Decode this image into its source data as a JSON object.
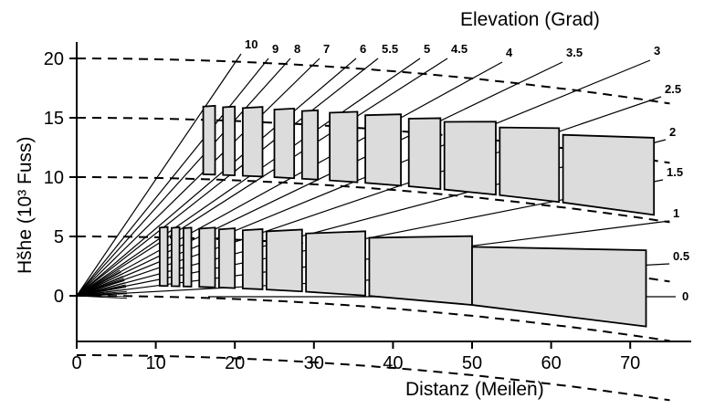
{
  "diagram": {
    "title": "Elevation (Grad)",
    "xlabel": "Distanz (Meilen)",
    "ylabel": "Hšhe (10³ Fuss)",
    "x_ticks": [
      "0",
      "10",
      "20",
      "30",
      "40",
      "50",
      "60",
      "70"
    ],
    "y_ticks": [
      "0",
      "5",
      "10",
      "15",
      "20"
    ],
    "elevation_labels": [
      "10",
      "9",
      "8",
      "7",
      "6",
      "5.5",
      "5",
      "4.5",
      "4",
      "3.5",
      "3",
      "2.5",
      "2",
      "1.5",
      "1",
      "0.5",
      "0"
    ]
  },
  "chart_data": {
    "type": "diagram",
    "title": "Elevation (Grad)",
    "xlabel": "Distanz (Meilen)",
    "ylabel": "Hšhe (10³ Fuss)",
    "xlim": [
      0,
      75
    ],
    "ylim": [
      -4,
      22
    ],
    "elevation_angles_deg": [
      10,
      9,
      8,
      7,
      6,
      5.5,
      5,
      4.5,
      4,
      3.5,
      3,
      2.5,
      2,
      1.5,
      1,
      0.5,
      0
    ],
    "height_bands_kft": [
      {
        "lower": 0,
        "upper": 5
      },
      {
        "lower": 10,
        "upper": 15
      }
    ],
    "constant_height_curves_kft": [
      -5,
      0,
      5,
      10,
      15,
      20
    ]
  }
}
